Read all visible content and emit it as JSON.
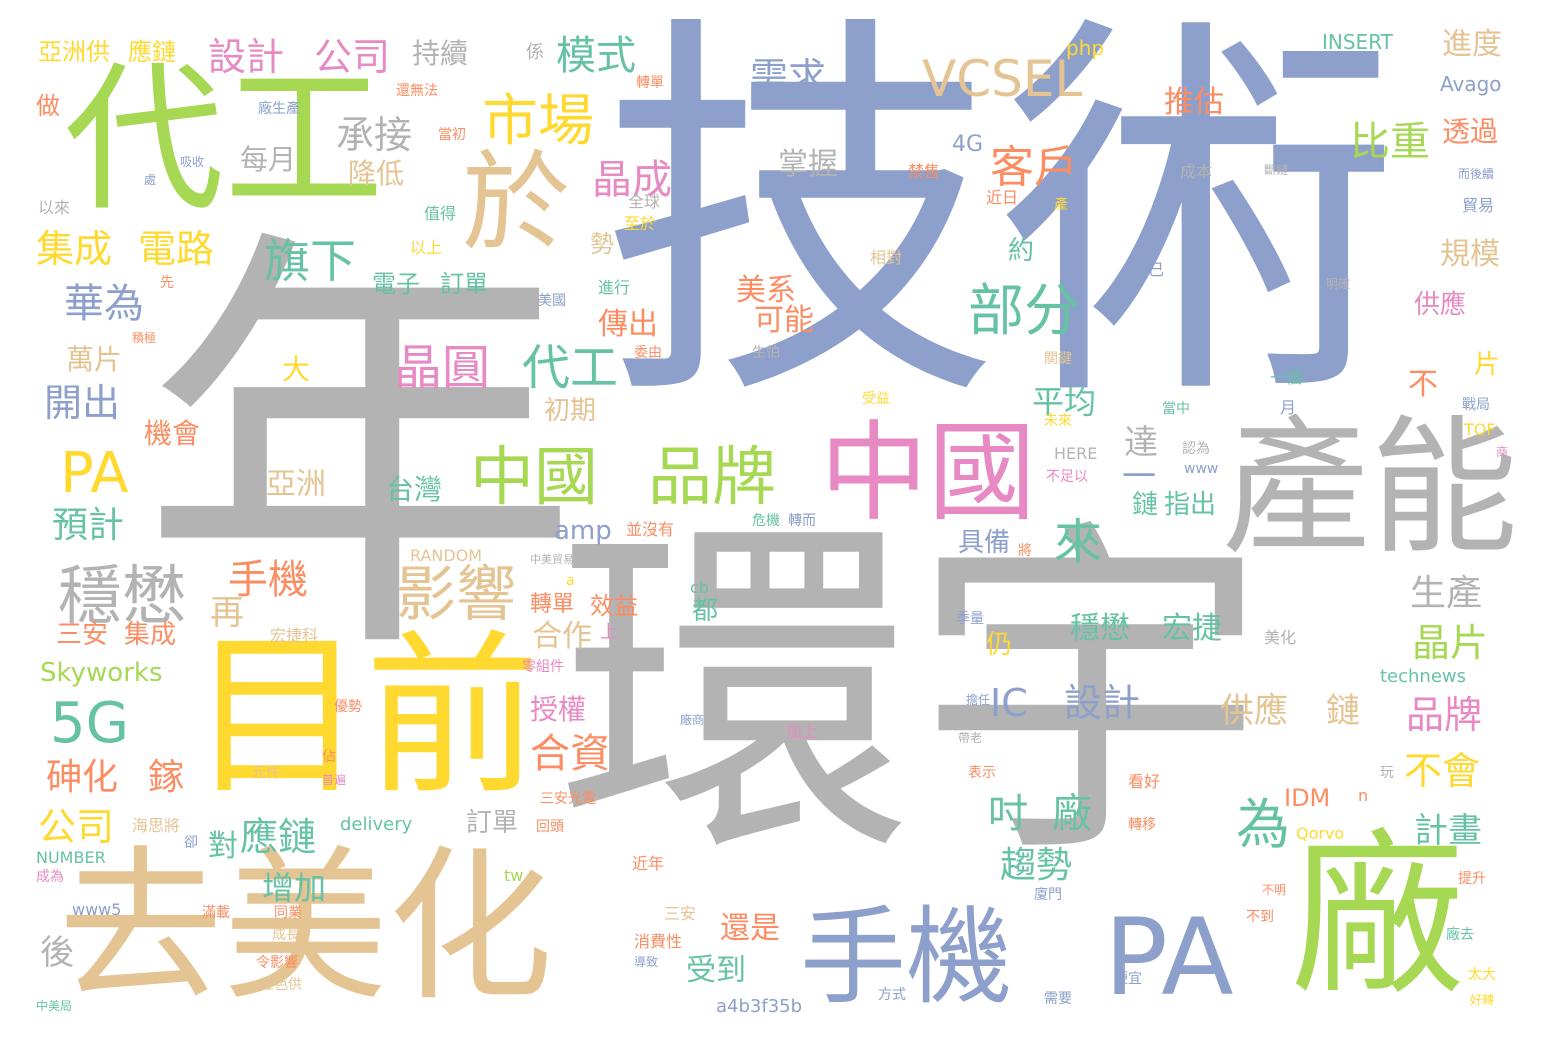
{
  "colors": {
    "grey": "#b3b3b3",
    "blue": "#8da0cb",
    "green": "#a6d854",
    "yellow": "#ffd92f",
    "tan": "#e5c494",
    "pink": "#e78ac3",
    "teal": "#66c2a5",
    "orange": "#fc8d62"
  },
  "words": [
    {
      "text": "年",
      "color": "#b3b3b3"
    },
    {
      "text": "技術",
      "color": "#8da0cb"
    },
    {
      "text": "環宇",
      "color": "#b3b3b3"
    },
    {
      "text": "代工",
      "color": "#a6d854"
    },
    {
      "text": "目前",
      "color": "#ffd92f"
    },
    {
      "text": "去美化",
      "color": "#e5c494"
    },
    {
      "text": "廠",
      "color": "#a6d854"
    },
    {
      "text": "產能",
      "color": "#b3b3b3"
    },
    {
      "text": "中國",
      "color": "#e78ac3"
    },
    {
      "text": "手機",
      "color": "#8da0cb"
    },
    {
      "text": "PA",
      "color": "#8da0cb"
    },
    {
      "text": "於",
      "color": "#e5c494"
    },
    {
      "text": "中國",
      "color": "#a6d854"
    },
    {
      "text": "品牌",
      "color": "#a6d854"
    },
    {
      "text": "穩懋",
      "color": "#b3b3b3"
    },
    {
      "text": "影響",
      "color": "#e5c494"
    },
    {
      "text": "市場",
      "color": "#ffd92f"
    },
    {
      "text": "部分",
      "color": "#66c2a5"
    },
    {
      "text": "VCSEL",
      "color": "#e5c494"
    },
    {
      "text": "5G",
      "color": "#66c2a5"
    },
    {
      "text": "PA",
      "color": "#ffd92f"
    },
    {
      "text": "晶圓",
      "color": "#e78ac3"
    },
    {
      "text": "代工",
      "color": "#66c2a5"
    },
    {
      "text": "客戶",
      "color": "#fc8d62"
    },
    {
      "text": "來",
      "color": "#66c2a5"
    },
    {
      "text": "為",
      "color": "#66c2a5"
    },
    {
      "text": "模式",
      "color": "#66c2a5"
    },
    {
      "text": "設計",
      "color": "#e78ac3"
    },
    {
      "text": "公司",
      "color": "#e78ac3"
    },
    {
      "text": "承接",
      "color": "#b3b3b3"
    },
    {
      "text": "需求",
      "color": "#8da0cb"
    },
    {
      "text": "旗下",
      "color": "#66c2a5"
    },
    {
      "text": "華為",
      "color": "#8da0cb"
    },
    {
      "text": "晶成",
      "color": "#e78ac3"
    },
    {
      "text": "集成",
      "color": "#ffd92f"
    },
    {
      "text": "電路",
      "color": "#ffd92f"
    },
    {
      "text": "比重",
      "color": "#a6d854"
    },
    {
      "text": "手機",
      "color": "#fc8d62"
    },
    {
      "text": "合資",
      "color": "#fc8d62"
    },
    {
      "text": "IC",
      "color": "#8da0cb"
    },
    {
      "text": "設計",
      "color": "#8da0cb"
    },
    {
      "text": "吋",
      "color": "#66c2a5"
    },
    {
      "text": "廠",
      "color": "#66c2a5"
    },
    {
      "text": "砷化",
      "color": "#fc8d62"
    },
    {
      "text": "鎵",
      "color": "#fc8d62"
    },
    {
      "text": "應鏈",
      "color": "#66c2a5"
    },
    {
      "text": "對",
      "color": "#66c2a5"
    },
    {
      "text": "公司",
      "color": "#ffd92f"
    },
    {
      "text": "趨勢",
      "color": "#66c2a5"
    },
    {
      "text": "增加",
      "color": "#66c2a5"
    },
    {
      "text": "開出",
      "color": "#8da0cb"
    },
    {
      "text": "預計",
      "color": "#66c2a5"
    },
    {
      "text": "穩懋",
      "color": "#66c2a5"
    },
    {
      "text": "宏捷",
      "color": "#66c2a5"
    },
    {
      "text": "供應",
      "color": "#e5c494"
    },
    {
      "text": "鏈",
      "color": "#e5c494"
    },
    {
      "text": "晶片",
      "color": "#a6d854"
    },
    {
      "text": "品牌",
      "color": "#e78ac3"
    },
    {
      "text": "生產",
      "color": "#b3b3b3"
    },
    {
      "text": "不會",
      "color": "#ffd92f"
    },
    {
      "text": "計畫",
      "color": "#66c2a5"
    },
    {
      "text": "受到",
      "color": "#66c2a5"
    },
    {
      "text": "還是",
      "color": "#fc8d62"
    },
    {
      "text": "後",
      "color": "#b3b3b3"
    },
    {
      "text": "進度",
      "color": "#e5c494"
    },
    {
      "text": "透過",
      "color": "#fc8d62"
    },
    {
      "text": "規模",
      "color": "#e5c494"
    },
    {
      "text": "供應",
      "color": "#e78ac3"
    },
    {
      "text": "推估",
      "color": "#fc8d62"
    },
    {
      "text": "持續",
      "color": "#b3b3b3"
    },
    {
      "text": "每月",
      "color": "#b3b3b3"
    },
    {
      "text": "降低",
      "color": "#e5c494"
    },
    {
      "text": "掌握",
      "color": "#b3b3b3"
    },
    {
      "text": "美系",
      "color": "#fc8d62"
    },
    {
      "text": "可能",
      "color": "#fc8d62"
    },
    {
      "text": "傳出",
      "color": "#fc8d62"
    },
    {
      "text": "初期",
      "color": "#e5c494"
    },
    {
      "text": "平均",
      "color": "#66c2a5"
    },
    {
      "text": "達",
      "color": "#b3b3b3"
    },
    {
      "text": "一",
      "color": "#8da0cb"
    },
    {
      "text": "指出",
      "color": "#66c2a5"
    },
    {
      "text": "鏈",
      "color": "#66c2a5"
    },
    {
      "text": "具備",
      "color": "#8da0cb"
    },
    {
      "text": "合作",
      "color": "#e5c494"
    },
    {
      "text": "授權",
      "color": "#e78ac3"
    },
    {
      "text": "亞洲",
      "color": "#e5c494"
    },
    {
      "text": "台灣",
      "color": "#66c2a5"
    },
    {
      "text": "再",
      "color": "#e5c494"
    },
    {
      "text": "大",
      "color": "#ffd92f"
    },
    {
      "text": "萬片",
      "color": "#e5c494"
    },
    {
      "text": "機會",
      "color": "#fc8d62"
    },
    {
      "text": "電子",
      "color": "#66c2a5"
    },
    {
      "text": "訂單",
      "color": "#66c2a5"
    },
    {
      "text": "亞洲供",
      "color": "#ffd92f"
    },
    {
      "text": "應鏈",
      "color": "#ffd92f"
    },
    {
      "text": "做",
      "color": "#fc8d62"
    },
    {
      "text": "Skyworks",
      "color": "#a6d854"
    },
    {
      "text": "三安",
      "color": "#fc8d62"
    },
    {
      "text": "集成",
      "color": "#fc8d62"
    },
    {
      "text": "amp",
      "color": "#8da0cb"
    },
    {
      "text": "4G",
      "color": "#8da0cb"
    },
    {
      "text": "IDM",
      "color": "#fc8d62"
    },
    {
      "text": "不",
      "color": "#fc8d62"
    },
    {
      "text": "片",
      "color": "#ffd92f"
    },
    {
      "text": "約",
      "color": "#66c2a5"
    },
    {
      "text": "勢",
      "color": "#e5c494"
    },
    {
      "text": "都",
      "color": "#66c2a5"
    },
    {
      "text": "仍",
      "color": "#ffd92f"
    },
    {
      "text": "訂單",
      "color": "#b3b3b3"
    },
    {
      "text": "效益",
      "color": "#fc8d62"
    },
    {
      "text": "轉單",
      "color": "#fc8d62"
    },
    {
      "text": "上",
      "color": "#e78ac3"
    },
    {
      "text": "php",
      "color": "#ffd92f"
    },
    {
      "text": "INSERT",
      "color": "#66c2a5"
    },
    {
      "text": "Avago",
      "color": "#8da0cb"
    },
    {
      "text": "係",
      "color": "#b3b3b3"
    },
    {
      "text": "轉單",
      "color": "#fc8d62"
    },
    {
      "text": "還無法",
      "color": "#fc8d62"
    },
    {
      "text": "廠生產",
      "color": "#8da0cb"
    },
    {
      "text": "當初",
      "color": "#fc8d62"
    },
    {
      "text": "吸收",
      "color": "#8da0cb"
    },
    {
      "text": "處",
      "color": "#8da0cb"
    },
    {
      "text": "以來",
      "color": "#b3b3b3"
    },
    {
      "text": "值得",
      "color": "#66c2a5"
    },
    {
      "text": "全球",
      "color": "#b3b3b3"
    },
    {
      "text": "至於",
      "color": "#ffd92f"
    },
    {
      "text": "禁售",
      "color": "#fc8d62"
    },
    {
      "text": "近日",
      "color": "#fc8d62"
    },
    {
      "text": "產",
      "color": "#ffd92f"
    },
    {
      "text": "成本",
      "color": "#b3b3b3"
    },
    {
      "text": "斷鏈",
      "color": "#b3b3b3"
    },
    {
      "text": "而後續",
      "color": "#8da0cb"
    },
    {
      "text": "貿易",
      "color": "#8da0cb"
    },
    {
      "text": "以上",
      "color": "#ffd92f"
    },
    {
      "text": "先",
      "color": "#fc8d62"
    },
    {
      "text": "積極",
      "color": "#fc8d62"
    },
    {
      "text": "美國",
      "color": "#8da0cb"
    },
    {
      "text": "進行",
      "color": "#66c2a5"
    },
    {
      "text": "相對",
      "color": "#e5c494"
    },
    {
      "text": "已",
      "color": "#8da0cb"
    },
    {
      "text": "明確",
      "color": "#b3b3b3"
    },
    {
      "text": "生怕",
      "color": "#b3b3b3"
    },
    {
      "text": "委由",
      "color": "#fc8d62"
    },
    {
      "text": "關鍵",
      "color": "#e5c494"
    },
    {
      "text": "一個",
      "color": "#66c2a5"
    },
    {
      "text": "受益",
      "color": "#ffd92f"
    },
    {
      "text": "月",
      "color": "#8da0cb"
    },
    {
      "text": "戰局",
      "color": "#8da0cb"
    },
    {
      "text": "未來",
      "color": "#ffd92f"
    },
    {
      "text": "當中",
      "color": "#66c2a5"
    },
    {
      "text": "TOF",
      "color": "#ffd92f"
    },
    {
      "text": "商",
      "color": "#e78ac3"
    },
    {
      "text": "HERE",
      "color": "#b3b3b3"
    },
    {
      "text": "不足以",
      "color": "#e78ac3"
    },
    {
      "text": "認為",
      "color": "#b3b3b3"
    },
    {
      "text": "www",
      "color": "#8da0cb"
    },
    {
      "text": "危機",
      "color": "#66c2a5"
    },
    {
      "text": "轉而",
      "color": "#8da0cb"
    },
    {
      "text": "並沒有",
      "color": "#fc8d62"
    },
    {
      "text": "RANDOM",
      "color": "#e5c494"
    },
    {
      "text": "中美貿易",
      "color": "#b3b3b3"
    },
    {
      "text": "將",
      "color": "#fc8d62"
    },
    {
      "text": "a",
      "color": "#ffd92f"
    },
    {
      "text": "cb",
      "color": "#66c2a5"
    },
    {
      "text": "季量",
      "color": "#8da0cb"
    },
    {
      "text": "宏捷科",
      "color": "#e5c494"
    },
    {
      "text": "零組件",
      "color": "#e78ac3"
    },
    {
      "text": "美化",
      "color": "#b3b3b3"
    },
    {
      "text": "technews",
      "color": "#66c2a5"
    },
    {
      "text": "優勢",
      "color": "#fc8d62"
    },
    {
      "text": "擔任",
      "color": "#8da0cb"
    },
    {
      "text": "廠商",
      "color": "#8da0cb"
    },
    {
      "text": "加上",
      "color": "#e78ac3"
    },
    {
      "text": "帶老",
      "color": "#b3b3b3"
    },
    {
      "text": "元件",
      "color": "#e5c494"
    },
    {
      "text": "佔",
      "color": "#fc8d62"
    },
    {
      "text": "普遍",
      "color": "#e78ac3"
    },
    {
      "text": "表示",
      "color": "#fc8d62"
    },
    {
      "text": "看好",
      "color": "#fc8d62"
    },
    {
      "text": "玩",
      "color": "#b3b3b3"
    },
    {
      "text": "三安光電",
      "color": "#fc8d62"
    },
    {
      "text": "回頭",
      "color": "#fc8d62"
    },
    {
      "text": "n",
      "color": "#fc8d62"
    },
    {
      "text": "海思將",
      "color": "#e5c494"
    },
    {
      "text": "delivery",
      "color": "#66c2a5"
    },
    {
      "text": "轉移",
      "color": "#fc8d62"
    },
    {
      "text": "Qorvo",
      "color": "#ffd92f"
    },
    {
      "text": "卻",
      "color": "#8da0cb"
    },
    {
      "text": "NUMBER",
      "color": "#66c2a5"
    },
    {
      "text": "成為",
      "color": "#e78ac3"
    },
    {
      "text": "近年",
      "color": "#fc8d62"
    },
    {
      "text": "tw",
      "color": "#a6d854"
    },
    {
      "text": "提升",
      "color": "#fc8d62"
    },
    {
      "text": "不明",
      "color": "#fc8d62"
    },
    {
      "text": "廈門",
      "color": "#8da0cb"
    },
    {
      "text": "www5",
      "color": "#8da0cb"
    },
    {
      "text": "滿載",
      "color": "#fc8d62"
    },
    {
      "text": "同業",
      "color": "#fc8d62"
    },
    {
      "text": "成長",
      "color": "#e5c494"
    },
    {
      "text": "三安",
      "color": "#e5c494"
    },
    {
      "text": "不到",
      "color": "#fc8d62"
    },
    {
      "text": "廠去",
      "color": "#66c2a5"
    },
    {
      "text": "消費性",
      "color": "#fc8d62"
    },
    {
      "text": "導致",
      "color": "#8da0cb"
    },
    {
      "text": "太大",
      "color": "#ffd92f"
    },
    {
      "text": "令影響",
      "color": "#fc8d62"
    },
    {
      "text": "紅色供",
      "color": "#e5c494"
    },
    {
      "text": "中美局",
      "color": "#66c2a5"
    },
    {
      "text": "方式",
      "color": "#8da0cb"
    },
    {
      "text": "需要",
      "color": "#8da0cb"
    },
    {
      "text": "便宜",
      "color": "#8da0cb"
    },
    {
      "text": "好轉",
      "color": "#ffd92f"
    },
    {
      "text": "a4b3f35b",
      "color": "#8da0cb"
    }
  ]
}
